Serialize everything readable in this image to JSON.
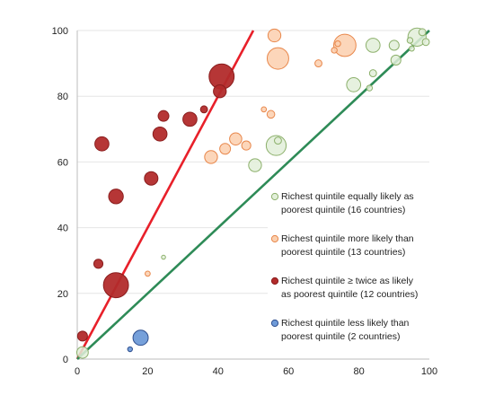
{
  "chart_data": {
    "type": "scatter",
    "title": "",
    "xlabel": "",
    "ylabel": "",
    "xlim": [
      0,
      100
    ],
    "ylim": [
      0,
      100
    ],
    "x_ticks": [
      "0",
      "20",
      "40",
      "60",
      "80",
      "100"
    ],
    "y_ticks": [
      "0",
      "20",
      "40",
      "60",
      "80",
      "100"
    ],
    "grid": "horizontal",
    "legend_position": "right",
    "colors": {
      "equal_fill": "#e2efd9",
      "equal_edge": "#8cb06b",
      "more_fill": "#fbcfae",
      "more_edge": "#e8874b",
      "twice_fill": "#b22b2b",
      "twice_edge": "#8a1d1d",
      "less_fill": "#6f9bd8",
      "less_edge": "#2f4f8f",
      "red_line": "#e8202a",
      "green_line": "#2e8b57"
    },
    "lines": [
      {
        "name": "",
        "color": "red",
        "x": [
          0,
          50
        ],
        "y": [
          0,
          100
        ]
      },
      {
        "name": "",
        "color": "green",
        "x": [
          0,
          100
        ],
        "y": [
          0,
          100
        ]
      }
    ],
    "series": [
      {
        "name": "Richest quintile equally likely as poorest quintile (16 countries)",
        "key": "equal",
        "points": [
          {
            "x": 1.5,
            "y": 2,
            "size": 4
          },
          {
            "x": 24.5,
            "y": 31,
            "size": 0.5
          },
          {
            "x": 50.5,
            "y": 59,
            "size": 5
          },
          {
            "x": 56.5,
            "y": 65,
            "size": 12
          },
          {
            "x": 57,
            "y": 66.5,
            "size": 1.5
          },
          {
            "x": 78.5,
            "y": 83.5,
            "size": 6
          },
          {
            "x": 83,
            "y": 82.5,
            "size": 1
          },
          {
            "x": 84,
            "y": 87,
            "size": 1.5
          },
          {
            "x": 84,
            "y": 95.5,
            "size": 6
          },
          {
            "x": 90,
            "y": 95.5,
            "size": 3
          },
          {
            "x": 90.5,
            "y": 91,
            "size": 3
          },
          {
            "x": 94.5,
            "y": 97,
            "size": 1
          },
          {
            "x": 96.5,
            "y": 98,
            "size": 10
          },
          {
            "x": 98,
            "y": 99.5,
            "size": 1.5
          },
          {
            "x": 95,
            "y": 94.5,
            "size": 0.8
          },
          {
            "x": 99,
            "y": 96.5,
            "size": 1.5
          }
        ]
      },
      {
        "name": "Richest quintile more likely than poorest quintile (13 countries)",
        "key": "more",
        "points": [
          {
            "x": 20,
            "y": 26,
            "size": 0.8
          },
          {
            "x": 38,
            "y": 61.5,
            "size": 5
          },
          {
            "x": 42,
            "y": 64,
            "size": 3.5
          },
          {
            "x": 45,
            "y": 67,
            "size": 4.5
          },
          {
            "x": 48,
            "y": 65,
            "size": 2.5
          },
          {
            "x": 53,
            "y": 76,
            "size": 0.8
          },
          {
            "x": 55,
            "y": 74.5,
            "size": 1.8
          },
          {
            "x": 56,
            "y": 98.5,
            "size": 5
          },
          {
            "x": 57,
            "y": 91.5,
            "size": 14
          },
          {
            "x": 68.5,
            "y": 90,
            "size": 1.5
          },
          {
            "x": 73,
            "y": 94,
            "size": 1
          },
          {
            "x": 74,
            "y": 96,
            "size": 1
          },
          {
            "x": 76,
            "y": 95.5,
            "size": 15
          }
        ]
      },
      {
        "name": "Richest quintile ≥ twice as likely as poorest quintile (12 countries)",
        "key": "twice",
        "points": [
          {
            "x": 1.5,
            "y": 7,
            "size": 3
          },
          {
            "x": 6,
            "y": 29,
            "size": 2.5
          },
          {
            "x": 7,
            "y": 65.5,
            "size": 6
          },
          {
            "x": 11,
            "y": 49.5,
            "size": 6.5
          },
          {
            "x": 11,
            "y": 22.5,
            "size": 19
          },
          {
            "x": 21,
            "y": 55,
            "size": 5.5
          },
          {
            "x": 23.5,
            "y": 68.5,
            "size": 6
          },
          {
            "x": 24.5,
            "y": 74,
            "size": 3.5
          },
          {
            "x": 32,
            "y": 73,
            "size": 6
          },
          {
            "x": 36,
            "y": 76,
            "size": 1.5
          },
          {
            "x": 40.5,
            "y": 81.5,
            "size": 5
          },
          {
            "x": 41,
            "y": 86,
            "size": 19
          }
        ]
      },
      {
        "name": "Richest quintile less likely than poorest quintile (2 countries)",
        "key": "less",
        "points": [
          {
            "x": 15,
            "y": 3,
            "size": 0.7
          },
          {
            "x": 18,
            "y": 6.5,
            "size": 7
          }
        ]
      }
    ],
    "legend": [
      {
        "key": "equal",
        "lines": [
          "Richest quintile equally likely as",
          "poorest quintile (16 countries)"
        ]
      },
      {
        "key": "more",
        "lines": [
          "Richest quintile more likely than",
          "poorest quintile (13 countries)"
        ]
      },
      {
        "key": "twice",
        "lines": [
          "Richest quintile ≥ twice as likely",
          "as poorest quintile (12 countries)"
        ]
      },
      {
        "key": "less",
        "lines": [
          "Richest quintile less likely than",
          "poorest quintile (2 countries)"
        ]
      }
    ]
  }
}
